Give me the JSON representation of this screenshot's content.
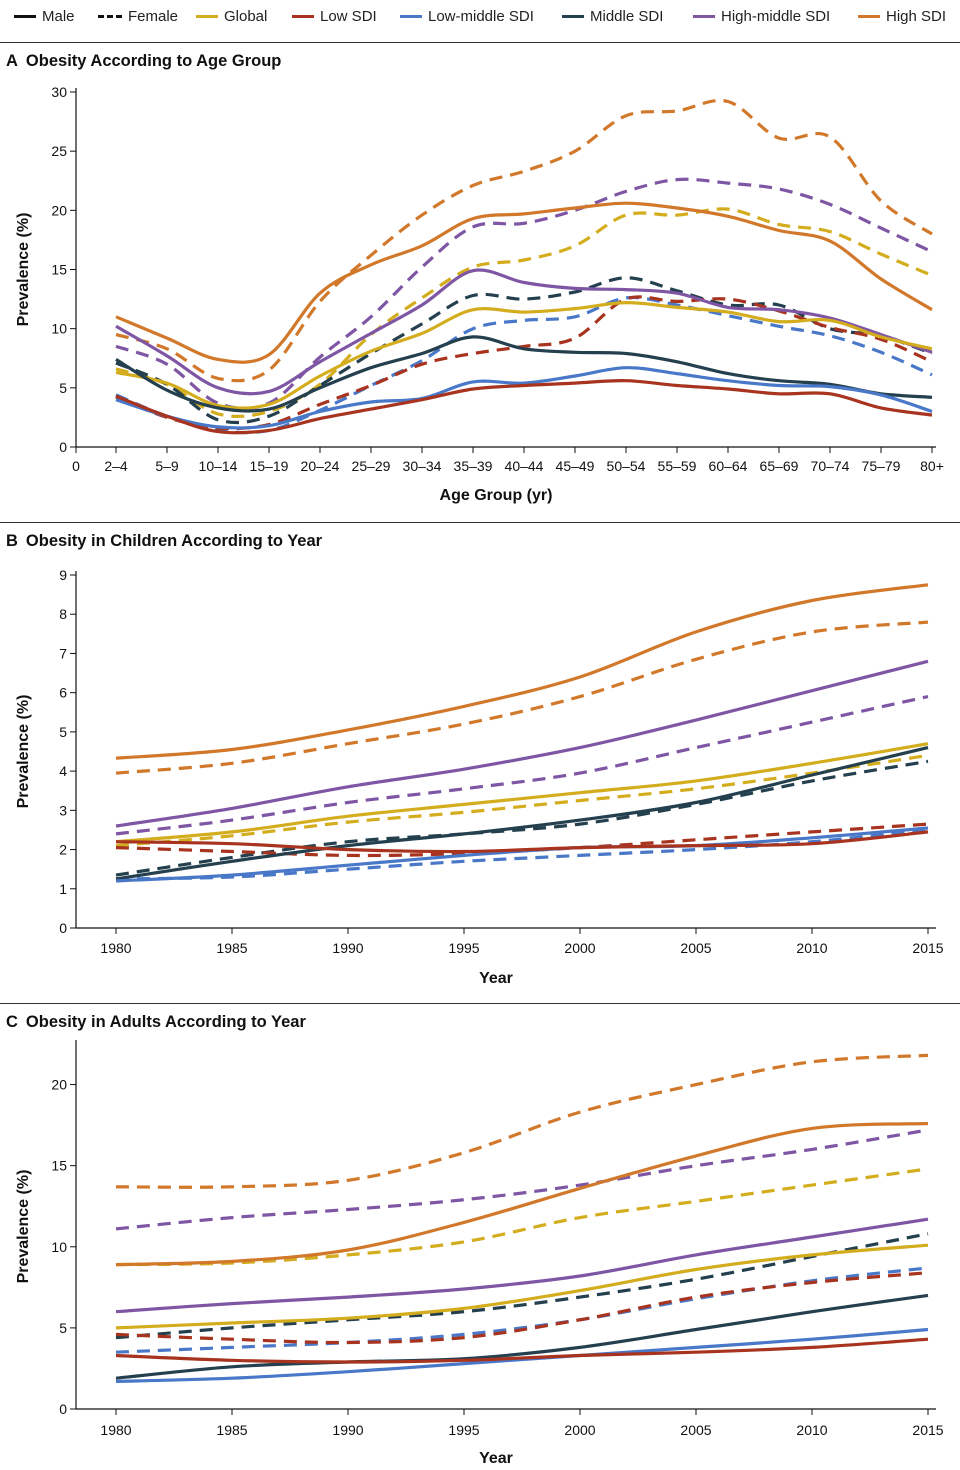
{
  "legend": [
    {
      "label": "Male",
      "color": "#111111",
      "style": "solid"
    },
    {
      "label": "Female",
      "color": "#111111",
      "style": "dashed"
    },
    {
      "label": "Global",
      "color": "#d4ad1e",
      "style": "solid"
    },
    {
      "label": "Low SDI",
      "color": "#a8341f",
      "style": "solid"
    },
    {
      "label": "Low-middle SDI",
      "color": "#4a78c8",
      "style": "solid"
    },
    {
      "label": "Middle SDI",
      "color": "#24404f",
      "style": "solid"
    },
    {
      "label": "High-middle SDI",
      "color": "#7e56a4",
      "style": "solid"
    },
    {
      "label": "High SDI",
      "color": "#d2782a",
      "style": "solid"
    }
  ],
  "chart_data": [
    {
      "letter": "A",
      "title": "Obesity According to Age Group",
      "type": "line",
      "xlabel": "Age Group (yr)",
      "ylabel": "Prevalence (%)",
      "zero_tick": "0",
      "categories": [
        "2–4",
        "5–9",
        "10–14",
        "15–19",
        "20–24",
        "25–29",
        "30–34",
        "35–39",
        "40–44",
        "45–49",
        "50–54",
        "55–59",
        "60–64",
        "65–69",
        "70–74",
        "75–79",
        "80+"
      ],
      "yticks": [
        "0",
        "5",
        "10",
        "15",
        "20",
        "25",
        "30"
      ],
      "ylim": [
        0,
        30
      ],
      "series": [
        {
          "group": "High SDI",
          "sex": "Male",
          "values": [
            11.0,
            9.2,
            7.4,
            7.8,
            13.0,
            15.4,
            17.0,
            19.3,
            19.7,
            20.2,
            20.6,
            20.2,
            19.5,
            18.3,
            17.4,
            14.2,
            11.6
          ]
        },
        {
          "group": "High SDI",
          "sex": "Female",
          "values": [
            9.5,
            8.3,
            5.8,
            6.5,
            12.3,
            16.2,
            19.6,
            22.1,
            23.3,
            25.0,
            28.0,
            28.4,
            29.2,
            26.1,
            26.2,
            20.8,
            18.0
          ]
        },
        {
          "group": "High-middle SDI",
          "sex": "Male",
          "values": [
            10.2,
            7.7,
            5.0,
            4.7,
            7.2,
            9.6,
            12.0,
            14.9,
            13.9,
            13.4,
            13.3,
            13.0,
            11.8,
            11.6,
            10.9,
            9.5,
            8.0
          ]
        },
        {
          "group": "High-middle SDI",
          "sex": "Female",
          "values": [
            8.5,
            7.0,
            3.7,
            3.7,
            7.6,
            11.0,
            15.2,
            18.6,
            18.9,
            20.0,
            21.6,
            22.6,
            22.3,
            21.8,
            20.5,
            18.5,
            16.5
          ]
        },
        {
          "group": "Global",
          "sex": "Male",
          "values": [
            6.3,
            5.4,
            3.5,
            3.6,
            6.0,
            8.1,
            9.6,
            11.6,
            11.4,
            11.7,
            12.2,
            11.8,
            11.4,
            10.6,
            10.7,
            9.3,
            8.3
          ]
        },
        {
          "group": "Global",
          "sex": "Female",
          "values": [
            6.6,
            5.3,
            2.8,
            3.0,
            5.3,
            9.5,
            12.6,
            15.2,
            15.8,
            17.0,
            19.6,
            19.6,
            20.1,
            18.8,
            18.2,
            16.3,
            14.5
          ]
        },
        {
          "group": "Middle SDI",
          "sex": "Male",
          "values": [
            7.4,
            4.8,
            3.3,
            3.2,
            5.0,
            6.7,
            7.9,
            9.3,
            8.3,
            8.0,
            7.9,
            7.2,
            6.2,
            5.6,
            5.3,
            4.5,
            4.2
          ]
        },
        {
          "group": "Middle SDI",
          "sex": "Female",
          "values": [
            7.1,
            5.3,
            2.3,
            2.6,
            5.2,
            7.9,
            10.4,
            12.8,
            12.5,
            13.1,
            14.3,
            13.2,
            12.0,
            12.0,
            10.0,
            9.4,
            7.9
          ]
        },
        {
          "group": "Low-middle SDI",
          "sex": "Male",
          "values": [
            4.0,
            2.6,
            1.7,
            1.8,
            3.0,
            3.8,
            4.1,
            5.5,
            5.4,
            6.0,
            6.7,
            6.2,
            5.6,
            5.2,
            5.1,
            4.4,
            3.0
          ]
        },
        {
          "group": "Low-middle SDI",
          "sex": "Female",
          "values": [
            4.4,
            2.6,
            1.4,
            1.4,
            3.1,
            5.2,
            7.3,
            10.0,
            10.7,
            11.0,
            12.6,
            12.0,
            11.1,
            10.2,
            9.4,
            8.0,
            6.1
          ]
        },
        {
          "group": "Low SDI",
          "sex": "Male",
          "values": [
            4.3,
            2.6,
            1.3,
            1.4,
            2.4,
            3.2,
            4.0,
            4.9,
            5.2,
            5.4,
            5.6,
            5.2,
            4.9,
            4.5,
            4.5,
            3.3,
            2.7
          ]
        },
        {
          "group": "Low SDI",
          "sex": "Female",
          "values": [
            4.2,
            2.5,
            1.6,
            1.9,
            3.6,
            5.2,
            7.0,
            7.9,
            8.5,
            9.2,
            12.5,
            12.3,
            12.5,
            11.5,
            10.1,
            9.1,
            7.2
          ]
        }
      ]
    },
    {
      "letter": "B",
      "title": "Obesity in Children According to Year",
      "type": "line",
      "xlabel": "Year",
      "ylabel": "Prevalence (%)",
      "x": [
        1980,
        1985,
        1990,
        1995,
        2000,
        2005,
        2010,
        2015
      ],
      "xticks": [
        "1980",
        "1985",
        "1990",
        "1995",
        "2000",
        "2005",
        "2010",
        "2015"
      ],
      "yticks": [
        "0",
        "1",
        "2",
        "3",
        "4",
        "5",
        "6",
        "7",
        "8",
        "9"
      ],
      "ylim": [
        0,
        9
      ],
      "series": [
        {
          "group": "High SDI",
          "sex": "Male",
          "values": [
            4.33,
            4.55,
            5.05,
            5.65,
            6.4,
            7.55,
            8.35,
            8.75
          ]
        },
        {
          "group": "High SDI",
          "sex": "Female",
          "values": [
            3.95,
            4.2,
            4.7,
            5.2,
            5.9,
            6.85,
            7.55,
            7.8
          ]
        },
        {
          "group": "High-middle SDI",
          "sex": "Male",
          "values": [
            2.6,
            3.05,
            3.6,
            4.05,
            4.6,
            5.3,
            6.05,
            6.8
          ]
        },
        {
          "group": "High-middle SDI",
          "sex": "Female",
          "values": [
            2.4,
            2.75,
            3.2,
            3.55,
            3.95,
            4.6,
            5.25,
            5.9
          ]
        },
        {
          "group": "Global",
          "sex": "Male",
          "values": [
            2.2,
            2.45,
            2.85,
            3.15,
            3.45,
            3.75,
            4.2,
            4.7
          ]
        },
        {
          "group": "Global",
          "sex": "Female",
          "values": [
            2.1,
            2.35,
            2.7,
            2.95,
            3.25,
            3.55,
            3.95,
            4.4
          ]
        },
        {
          "group": "Middle SDI",
          "sex": "Male",
          "values": [
            1.25,
            1.7,
            2.1,
            2.4,
            2.75,
            3.2,
            3.9,
            4.6
          ]
        },
        {
          "group": "Middle SDI",
          "sex": "Female",
          "values": [
            1.35,
            1.8,
            2.2,
            2.4,
            2.65,
            3.15,
            3.75,
            4.25
          ]
        },
        {
          "group": "Low-middle SDI",
          "sex": "Male",
          "values": [
            1.2,
            1.35,
            1.6,
            1.85,
            2.05,
            2.1,
            2.3,
            2.55
          ]
        },
        {
          "group": "Low-middle SDI",
          "sex": "Female",
          "values": [
            1.25,
            1.3,
            1.5,
            1.7,
            1.85,
            2.0,
            2.2,
            2.5
          ]
        },
        {
          "group": "Low SDI",
          "sex": "Male",
          "values": [
            2.2,
            2.15,
            2.0,
            1.95,
            2.05,
            2.1,
            2.15,
            2.45
          ]
        },
        {
          "group": "Low SDI",
          "sex": "Female",
          "values": [
            2.05,
            1.95,
            1.85,
            1.9,
            2.05,
            2.25,
            2.45,
            2.65
          ]
        }
      ]
    },
    {
      "letter": "C",
      "title": "Obesity in Adults According to Year",
      "type": "line",
      "xlabel": "Year",
      "ylabel": "Prevalence (%)",
      "x": [
        1980,
        1985,
        1990,
        1995,
        2000,
        2005,
        2010,
        2015
      ],
      "xticks": [
        "1980",
        "1985",
        "1990",
        "1995",
        "2000",
        "2005",
        "2010",
        "2015"
      ],
      "yticks": [
        "0",
        "5",
        "10",
        "15",
        "20"
      ],
      "ylim": [
        0,
        22.5
      ],
      "series": [
        {
          "group": "High SDI",
          "sex": "Male",
          "values": [
            8.9,
            9.1,
            9.8,
            11.5,
            13.6,
            15.6,
            17.3,
            17.6
          ]
        },
        {
          "group": "High SDI",
          "sex": "Female",
          "values": [
            13.7,
            13.7,
            14.1,
            15.8,
            18.3,
            20.0,
            21.4,
            21.8
          ]
        },
        {
          "group": "High-middle SDI",
          "sex": "Male",
          "values": [
            6.0,
            6.5,
            6.9,
            7.4,
            8.2,
            9.5,
            10.6,
            11.7
          ]
        },
        {
          "group": "High-middle SDI",
          "sex": "Female",
          "values": [
            11.1,
            11.8,
            12.3,
            12.9,
            13.8,
            15.0,
            16.0,
            17.2
          ]
        },
        {
          "group": "Global",
          "sex": "Male",
          "values": [
            5.0,
            5.3,
            5.6,
            6.2,
            7.3,
            8.6,
            9.5,
            10.1
          ]
        },
        {
          "group": "Global",
          "sex": "Female",
          "values": [
            8.9,
            9.0,
            9.5,
            10.3,
            11.8,
            12.8,
            13.8,
            14.8
          ]
        },
        {
          "group": "Middle SDI",
          "sex": "Male",
          "values": [
            1.9,
            2.6,
            2.9,
            3.1,
            3.8,
            4.9,
            6.0,
            7.0
          ]
        },
        {
          "group": "Middle SDI",
          "sex": "Female",
          "values": [
            4.4,
            5.0,
            5.5,
            6.0,
            6.9,
            8.0,
            9.4,
            10.8
          ]
        },
        {
          "group": "Low-middle SDI",
          "sex": "Male",
          "values": [
            1.7,
            1.9,
            2.3,
            2.8,
            3.3,
            3.8,
            4.3,
            4.9
          ]
        },
        {
          "group": "Low-middle SDI",
          "sex": "Female",
          "values": [
            3.5,
            3.8,
            4.1,
            4.6,
            5.5,
            6.8,
            7.9,
            8.7
          ]
        },
        {
          "group": "Low SDI",
          "sex": "Male",
          "values": [
            3.3,
            3.0,
            2.9,
            3.0,
            3.3,
            3.5,
            3.8,
            4.3
          ]
        },
        {
          "group": "Low SDI",
          "sex": "Female",
          "values": [
            4.6,
            4.3,
            4.1,
            4.4,
            5.5,
            6.9,
            7.8,
            8.4
          ]
        }
      ]
    }
  ]
}
